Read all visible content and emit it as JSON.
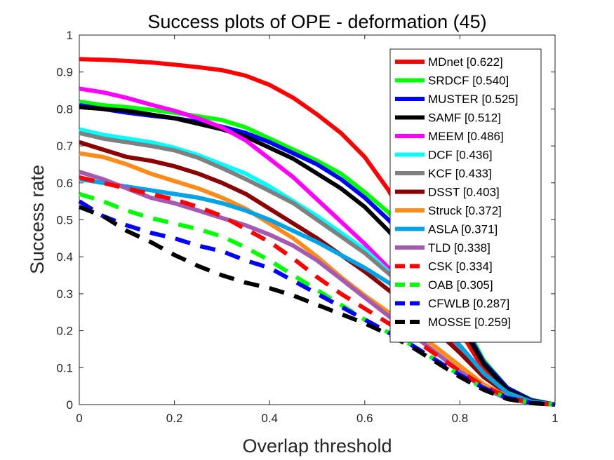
{
  "chart_data": {
    "type": "line",
    "title": "Success plots of OPE - deformation (45)",
    "xlabel": "Overlap threshold",
    "ylabel": "Success rate",
    "xlim": [
      0,
      1
    ],
    "ylim": [
      0,
      1
    ],
    "xticks": [
      "0",
      "0.2",
      "0.4",
      "0.6",
      "0.8",
      "1"
    ],
    "yticks": [
      "0",
      "0.1",
      "0.2",
      "0.3",
      "0.4",
      "0.5",
      "0.6",
      "0.7",
      "0.8",
      "0.9",
      "1"
    ],
    "grid": false,
    "legend_position": "top-right",
    "x": [
      0,
      0.05,
      0.1,
      0.15,
      0.2,
      0.25,
      0.3,
      0.35,
      0.4,
      0.45,
      0.5,
      0.55,
      0.6,
      0.65,
      0.7,
      0.75,
      0.8,
      0.85,
      0.9,
      0.95,
      1
    ],
    "series": [
      {
        "name": "MDnet [0.622]",
        "color": "#ff0000",
        "dash": "solid",
        "values": [
          0.935,
          0.933,
          0.93,
          0.926,
          0.92,
          0.913,
          0.905,
          0.89,
          0.865,
          0.83,
          0.785,
          0.735,
          0.67,
          0.58,
          0.47,
          0.34,
          0.2,
          0.095,
          0.04,
          0.012,
          0.0
        ]
      },
      {
        "name": "SRDCF [0.540]",
        "color": "#00ff00",
        "dash": "solid",
        "values": [
          0.82,
          0.81,
          0.805,
          0.798,
          0.79,
          0.78,
          0.77,
          0.75,
          0.72,
          0.69,
          0.66,
          0.625,
          0.575,
          0.52,
          0.45,
          0.36,
          0.24,
          0.12,
          0.045,
          0.013,
          0.0
        ]
      },
      {
        "name": "MUSTER [0.525]",
        "color": "#0000ff",
        "dash": "solid",
        "values": [
          0.81,
          0.8,
          0.79,
          0.782,
          0.775,
          0.765,
          0.752,
          0.735,
          0.71,
          0.68,
          0.65,
          0.61,
          0.56,
          0.5,
          0.43,
          0.34,
          0.23,
          0.115,
          0.045,
          0.012,
          0.0
        ]
      },
      {
        "name": "SAMF [0.512]",
        "color": "#000000",
        "dash": "solid",
        "values": [
          0.805,
          0.8,
          0.795,
          0.785,
          0.775,
          0.76,
          0.745,
          0.725,
          0.695,
          0.665,
          0.625,
          0.585,
          0.535,
          0.47,
          0.4,
          0.32,
          0.22,
          0.11,
          0.04,
          0.01,
          0.0
        ]
      },
      {
        "name": "MEEM [0.486]",
        "color": "#ff00ff",
        "dash": "solid",
        "values": [
          0.855,
          0.845,
          0.83,
          0.812,
          0.795,
          0.775,
          0.75,
          0.715,
          0.665,
          0.615,
          0.555,
          0.495,
          0.435,
          0.37,
          0.3,
          0.23,
          0.15,
          0.075,
          0.03,
          0.008,
          0.0
        ]
      },
      {
        "name": "DCF [0.436]",
        "color": "#00ffff",
        "dash": "solid",
        "values": [
          0.745,
          0.73,
          0.72,
          0.71,
          0.695,
          0.675,
          0.65,
          0.625,
          0.59,
          0.55,
          0.51,
          0.465,
          0.42,
          0.36,
          0.3,
          0.23,
          0.155,
          0.08,
          0.03,
          0.008,
          0.0
        ]
      },
      {
        "name": "KCF [0.433]",
        "color": "#808080",
        "dash": "solid",
        "values": [
          0.735,
          0.72,
          0.71,
          0.7,
          0.688,
          0.668,
          0.64,
          0.61,
          0.578,
          0.545,
          0.5,
          0.455,
          0.41,
          0.355,
          0.3,
          0.23,
          0.155,
          0.08,
          0.03,
          0.008,
          0.0
        ]
      },
      {
        "name": "DSST [0.403]",
        "color": "#8b0000",
        "dash": "solid",
        "values": [
          0.71,
          0.69,
          0.67,
          0.66,
          0.645,
          0.625,
          0.6,
          0.57,
          0.53,
          0.49,
          0.45,
          0.405,
          0.36,
          0.31,
          0.26,
          0.2,
          0.14,
          0.075,
          0.03,
          0.008,
          0.0
        ]
      },
      {
        "name": "Struck [0.372]",
        "color": "#ff8c1a",
        "dash": "solid",
        "values": [
          0.68,
          0.67,
          0.65,
          0.625,
          0.605,
          0.585,
          0.56,
          0.53,
          0.49,
          0.45,
          0.4,
          0.345,
          0.295,
          0.25,
          0.205,
          0.155,
          0.105,
          0.055,
          0.022,
          0.006,
          0.0
        ]
      },
      {
        "name": "ASLA [0.371]",
        "color": "#00a2e8",
        "dash": "solid",
        "values": [
          0.61,
          0.6,
          0.59,
          0.58,
          0.57,
          0.56,
          0.545,
          0.525,
          0.5,
          0.47,
          0.44,
          0.405,
          0.37,
          0.33,
          0.285,
          0.225,
          0.16,
          0.085,
          0.032,
          0.008,
          0.0
        ]
      },
      {
        "name": "TLD [0.338]",
        "color": "#a35ab0",
        "dash": "solid",
        "values": [
          0.63,
          0.61,
          0.585,
          0.56,
          0.545,
          0.525,
          0.505,
          0.485,
          0.46,
          0.43,
          0.39,
          0.34,
          0.29,
          0.24,
          0.19,
          0.14,
          0.09,
          0.045,
          0.015,
          0.004,
          0.0
        ]
      },
      {
        "name": "CSK [0.334]",
        "color": "#ff0000",
        "dash": "dashed",
        "values": [
          0.615,
          0.6,
          0.585,
          0.57,
          0.555,
          0.535,
          0.51,
          0.475,
          0.44,
          0.395,
          0.345,
          0.3,
          0.26,
          0.22,
          0.18,
          0.135,
          0.09,
          0.05,
          0.02,
          0.005,
          0.0
        ]
      },
      {
        "name": "OAB [0.305]",
        "color": "#00ff00",
        "dash": "dashed",
        "values": [
          0.57,
          0.55,
          0.525,
          0.505,
          0.49,
          0.475,
          0.455,
          0.425,
          0.39,
          0.35,
          0.31,
          0.27,
          0.23,
          0.195,
          0.16,
          0.12,
          0.08,
          0.045,
          0.018,
          0.005,
          0.0
        ]
      },
      {
        "name": "CFWLB [0.287]",
        "color": "#0000ff",
        "dash": "dashed",
        "values": [
          0.55,
          0.51,
          0.485,
          0.465,
          0.45,
          0.43,
          0.415,
          0.39,
          0.37,
          0.335,
          0.3,
          0.265,
          0.23,
          0.195,
          0.16,
          0.12,
          0.08,
          0.045,
          0.018,
          0.005,
          0.0
        ]
      },
      {
        "name": "MOSSE [0.259]",
        "color": "#000000",
        "dash": "dashed",
        "values": [
          0.535,
          0.51,
          0.47,
          0.44,
          0.405,
          0.375,
          0.35,
          0.33,
          0.315,
          0.295,
          0.27,
          0.245,
          0.22,
          0.19,
          0.155,
          0.115,
          0.075,
          0.04,
          0.015,
          0.004,
          0.0
        ]
      }
    ]
  }
}
